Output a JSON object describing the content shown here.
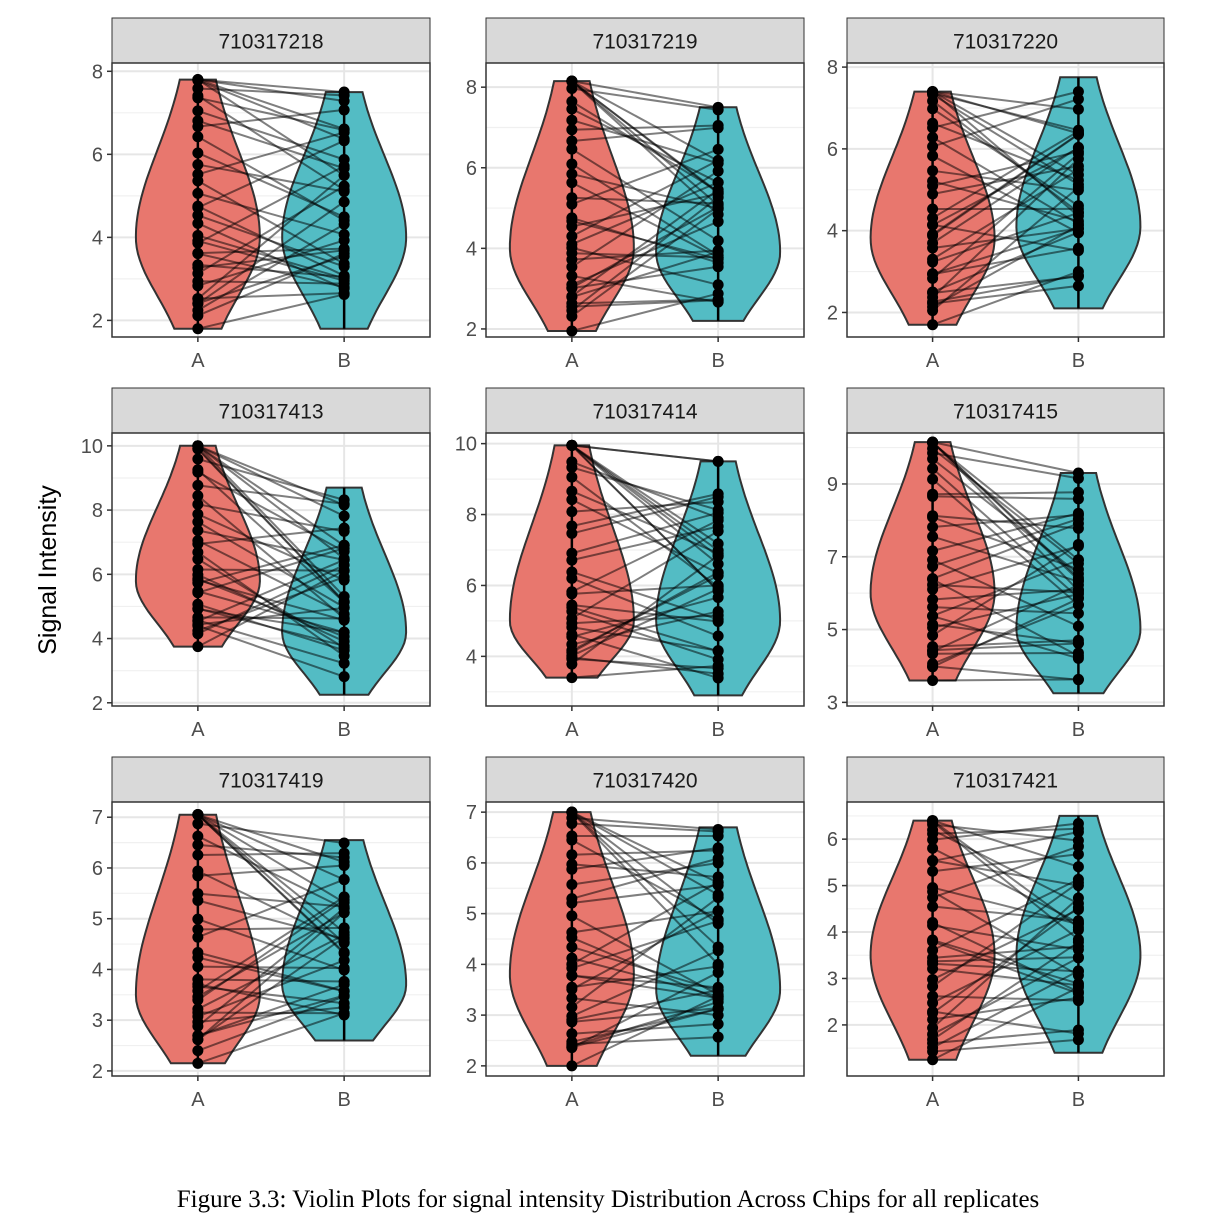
{
  "caption": "Figure 3.3: Violin Plots for signal intensity Distribution Across Chips for all replicates",
  "colors": {
    "A": "#E8776E",
    "B": "#53BCC4",
    "points": "#000000",
    "lines": "#000000",
    "strip": "#D9D9D9"
  },
  "chart_data": {
    "type": "violin",
    "ylabel": "Signal Intensity",
    "groups": [
      "A",
      "B"
    ],
    "rows": [
      {
        "panels": [
          "710317218",
          "710317219",
          "710317220"
        ]
      },
      {
        "panels": [
          "710317413",
          "710317414",
          "710317415"
        ]
      },
      {
        "panels": [
          "710317419",
          "710317420",
          "710317421"
        ]
      }
    ],
    "panels": [
      {
        "chip": "710317218",
        "ylim": [
          1.6,
          8.2
        ],
        "yticks": [
          2,
          4,
          6,
          8
        ],
        "A": {
          "min": 1.8,
          "max": 7.8,
          "mode": 4.0
        },
        "B": {
          "min": 1.8,
          "max": 7.5,
          "mode": 4.0
        }
      },
      {
        "chip": "710317219",
        "ylim": [
          1.8,
          8.6
        ],
        "yticks": [
          2,
          4,
          6,
          8
        ],
        "A": {
          "min": 1.95,
          "max": 8.15,
          "mode": 4.0
        },
        "B": {
          "min": 2.2,
          "max": 7.5,
          "mode": 3.9
        }
      },
      {
        "chip": "710317220",
        "ylim": [
          1.4,
          8.1
        ],
        "yticks": [
          2,
          4,
          6,
          8
        ],
        "A": {
          "min": 1.7,
          "max": 7.4,
          "mode": 3.8
        },
        "B": {
          "min": 2.1,
          "max": 7.75,
          "mode": 4.1
        }
      },
      {
        "chip": "710317413",
        "ylim": [
          1.9,
          10.4
        ],
        "yticks": [
          2,
          4,
          6,
          8,
          10
        ],
        "A": {
          "min": 3.75,
          "max": 10.0,
          "mode": 5.8
        },
        "B": {
          "min": 2.25,
          "max": 8.7,
          "mode": 4.2
        }
      },
      {
        "chip": "710317414",
        "ylim": [
          2.6,
          10.3
        ],
        "yticks": [
          4,
          6,
          8,
          10
        ],
        "A": {
          "min": 3.4,
          "max": 9.95,
          "mode": 5.0
        },
        "B": {
          "min": 2.9,
          "max": 9.5,
          "mode": 5.0
        }
      },
      {
        "chip": "710317415",
        "ylim": [
          2.9,
          10.4
        ],
        "yticks": [
          3,
          5,
          7,
          9
        ],
        "A": {
          "min": 3.6,
          "max": 10.15,
          "mode": 6.0
        },
        "B": {
          "min": 3.25,
          "max": 9.3,
          "mode": 5.0
        }
      },
      {
        "chip": "710317419",
        "ylim": [
          1.9,
          7.3
        ],
        "yticks": [
          2,
          3,
          4,
          5,
          6,
          7
        ],
        "A": {
          "min": 2.15,
          "max": 7.05,
          "mode": 3.5
        },
        "B": {
          "min": 2.6,
          "max": 6.55,
          "mode": 3.7
        }
      },
      {
        "chip": "710317420",
        "ylim": [
          1.8,
          7.2
        ],
        "yticks": [
          2,
          3,
          4,
          5,
          6,
          7
        ],
        "A": {
          "min": 2.0,
          "max": 7.0,
          "mode": 3.8
        },
        "B": {
          "min": 2.2,
          "max": 6.7,
          "mode": 3.5
        }
      },
      {
        "chip": "710317421",
        "ylim": [
          0.9,
          6.8
        ],
        "yticks": [
          2,
          3,
          4,
          5,
          6
        ],
        "A": {
          "min": 1.25,
          "max": 6.4,
          "mode": 3.5
        },
        "B": {
          "min": 1.4,
          "max": 6.5,
          "mode": 3.5
        }
      }
    ]
  }
}
